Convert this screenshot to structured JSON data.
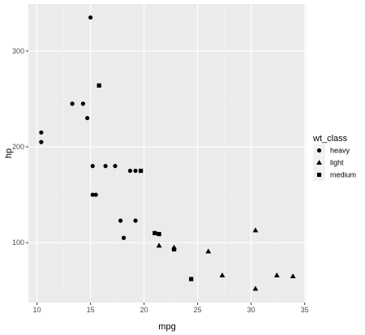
{
  "chart_data": {
    "type": "scatter",
    "xlabel": "mpg",
    "ylabel": "hp",
    "xlim": [
      9.2,
      35.1
    ],
    "ylim": [
      37.5,
      349
    ],
    "x_ticks": [
      10,
      15,
      20,
      25,
      30,
      35
    ],
    "y_ticks": [
      100,
      200,
      300
    ],
    "x_tick_labels": [
      "10",
      "15",
      "20",
      "25",
      "30",
      "35"
    ],
    "y_tick_labels": [
      "100",
      "200",
      "300"
    ],
    "grid": true,
    "legend": {
      "title": "wt_class",
      "placement": "right"
    },
    "series": [
      {
        "name": "heavy",
        "shape": "circle",
        "points": [
          [
            15.0,
            335
          ],
          [
            10.4,
            215
          ],
          [
            10.4,
            205
          ],
          [
            13.3,
            245
          ],
          [
            14.3,
            245
          ],
          [
            14.7,
            230
          ],
          [
            15.2,
            180
          ],
          [
            16.4,
            180
          ],
          [
            17.3,
            180
          ],
          [
            18.7,
            175
          ],
          [
            19.2,
            175
          ],
          [
            15.2,
            150
          ],
          [
            15.5,
            150
          ],
          [
            17.8,
            123
          ],
          [
            19.2,
            123
          ],
          [
            18.1,
            105
          ]
        ]
      },
      {
        "name": "light",
        "shape": "triangle",
        "points": [
          [
            30.4,
            113
          ],
          [
            21.4,
            97
          ],
          [
            22.8,
            95
          ],
          [
            26.0,
            91
          ],
          [
            27.3,
            66
          ],
          [
            32.4,
            66
          ],
          [
            33.9,
            65
          ],
          [
            30.4,
            52
          ]
        ]
      },
      {
        "name": "medium",
        "shape": "square",
        "points": [
          [
            15.8,
            264
          ],
          [
            19.7,
            175
          ],
          [
            21.0,
            110
          ],
          [
            21.4,
            109
          ],
          [
            22.8,
            93
          ],
          [
            24.4,
            62
          ]
        ]
      }
    ]
  },
  "colors": {
    "panel_bg": "#ebebeb",
    "grid_major": "#ffffff",
    "grid_minor": "#f5f5f5",
    "point": "#000000",
    "tick_text": "#4d4d4d",
    "tick_mark": "#333333",
    "legend_key_bg": "#f2f2f2"
  }
}
